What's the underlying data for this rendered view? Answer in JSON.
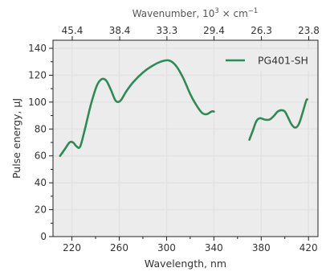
{
  "chart_data": {
    "type": "line",
    "xlabel": "Wavelength, nm",
    "ylabel": "Pulse energy, μJ",
    "top_axis_label_parts": [
      "Wavenumber, 10",
      "3",
      " × cm",
      "−1"
    ],
    "xlim": [
      204,
      428
    ],
    "ylim": [
      0,
      146
    ],
    "x_ticks": [
      220,
      260,
      300,
      340,
      380,
      420
    ],
    "y_ticks": [
      0,
      20,
      40,
      60,
      80,
      100,
      120,
      140
    ],
    "top_ticks": [
      {
        "label": "45.4",
        "x": 220.3
      },
      {
        "label": "38.4",
        "x": 260.4
      },
      {
        "label": "33.3",
        "x": 300.3
      },
      {
        "label": "29.4",
        "x": 340.1
      },
      {
        "label": "26.3",
        "x": 380.2
      },
      {
        "label": "23.8",
        "x": 420.2
      }
    ],
    "grid": true,
    "legend_position": "top-right",
    "colors": {
      "series": "#2e8b57",
      "grid": "#e3e3e3",
      "axes": "#222222"
    },
    "series": [
      {
        "name": "PG401-SH",
        "segments": [
          [
            [
              210,
              60
            ],
            [
              214,
              65
            ],
            [
              218,
              70
            ],
            [
              221,
              70
            ],
            [
              224,
              67
            ],
            [
              227,
              67
            ],
            [
              231,
              80
            ],
            [
              236,
              98
            ],
            [
              241,
              112
            ],
            [
              245,
              117
            ],
            [
              249,
              116
            ],
            [
              253,
              109
            ],
            [
              257,
              101
            ],
            [
              261,
              101
            ],
            [
              266,
              108
            ],
            [
              272,
              115
            ],
            [
              280,
              122
            ],
            [
              288,
              127
            ],
            [
              295,
              130
            ],
            [
              302,
              131
            ],
            [
              308,
              127
            ],
            [
              314,
              118
            ],
            [
              320,
              106
            ],
            [
              325,
              98
            ],
            [
              330,
              92
            ],
            [
              334,
              91
            ],
            [
              338,
              93
            ],
            [
              340,
              93
            ]
          ],
          [
            [
              370,
              72
            ],
            [
              373,
              79
            ],
            [
              376,
              86
            ],
            [
              379,
              88
            ],
            [
              383,
              87
            ],
            [
              387,
              87
            ],
            [
              391,
              90
            ],
            [
              394,
              93
            ],
            [
              397,
              94
            ],
            [
              400,
              93
            ],
            [
              403,
              88
            ],
            [
              406,
              83
            ],
            [
              409,
              81
            ],
            [
              412,
              84
            ],
            [
              415,
              92
            ],
            [
              418,
              101
            ],
            [
              419,
              102
            ]
          ]
        ]
      }
    ]
  }
}
